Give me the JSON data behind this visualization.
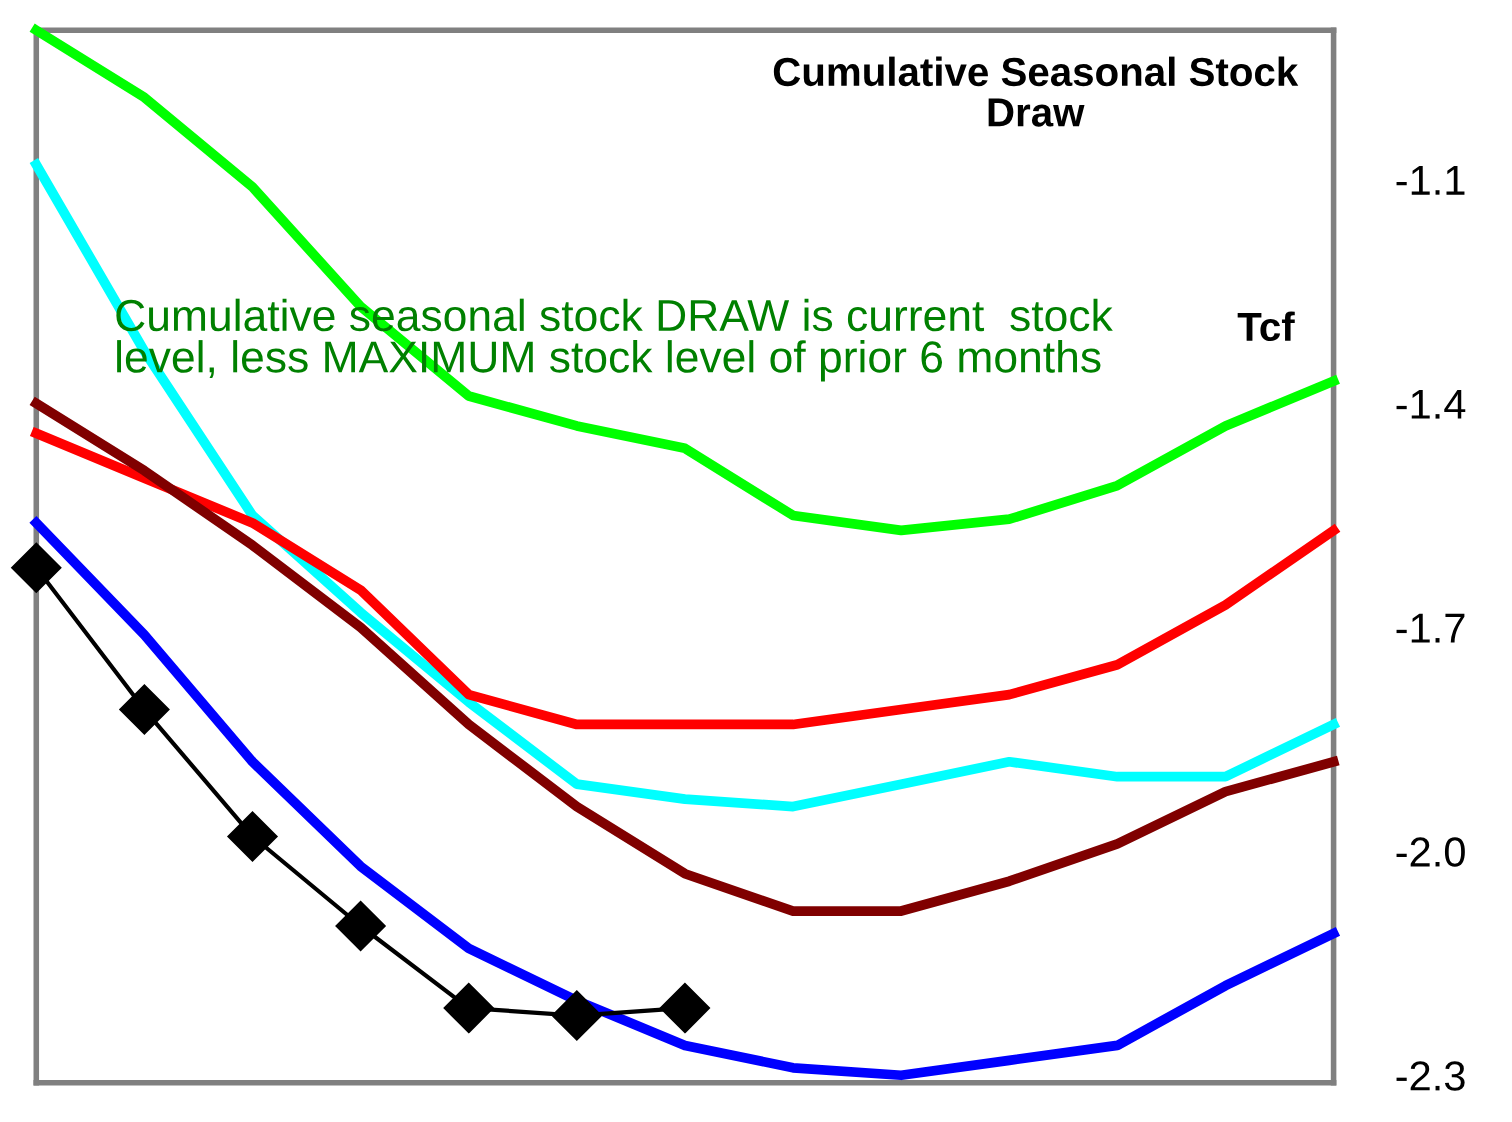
{
  "chart_data": {
    "type": "line",
    "title": "Cumulative Seasonal Stock Draw",
    "categories": [
      null,
      null,
      null,
      null,
      null,
      null,
      null,
      null,
      null,
      null,
      null,
      null,
      null
    ],
    "series": [
      {
        "color": "#00ff00",
        "values": [
          -0.9,
          -0.99,
          -1.11,
          -1.27,
          -1.39,
          -1.43,
          -1.46,
          -1.55,
          -1.57,
          -1.555,
          -1.51,
          -1.43,
          -1.37
        ]
      },
      {
        "color": "#00ffff",
        "values": [
          -1.08,
          -1.33,
          -1.55,
          -1.68,
          -1.8,
          -1.91,
          -1.93,
          -1.94,
          -1.91,
          -1.88,
          -1.9,
          -1.9,
          -1.83
        ]
      },
      {
        "color": "#ff0000",
        "values": [
          -1.44,
          -1.5,
          -1.56,
          -1.65,
          -1.79,
          -1.83,
          -1.83,
          -1.83,
          -1.81,
          -1.79,
          -1.75,
          -1.67,
          -1.57
        ]
      },
      {
        "color": "#800000",
        "values": [
          -1.4,
          -1.49,
          -1.59,
          -1.7,
          -1.83,
          -1.94,
          -2.03,
          -2.08,
          -2.08,
          -2.04,
          -1.99,
          -1.92,
          -1.88
        ]
      },
      {
        "color": "#0000ff",
        "values": [
          -1.56,
          -1.71,
          -1.88,
          -2.02,
          -2.13,
          -2.2,
          -2.26,
          -2.29,
          -2.3,
          -2.28,
          -2.26,
          -2.18,
          -2.11
        ]
      },
      {
        "color": "#000000",
        "marker": "diamond",
        "values": [
          -1.62,
          -1.81,
          -1.98,
          -2.1,
          -2.21,
          -2.22,
          -2.21,
          null,
          null,
          null,
          null,
          null,
          null
        ]
      }
    ],
    "ylim": [
      -2.31,
      -0.9
    ],
    "yticks": [
      -1.1,
      -1.4,
      -1.7,
      {
        "value": -2.0,
        "label": "-2.0"
      },
      -2.3
    ],
    "ylabel": "Tcf",
    "annotations": [
      "Cumulative seasonal stock DRAW is current  stock level, less MAXIMUM stock level of prior 6 months"
    ],
    "grid": false,
    "legend": false
  }
}
